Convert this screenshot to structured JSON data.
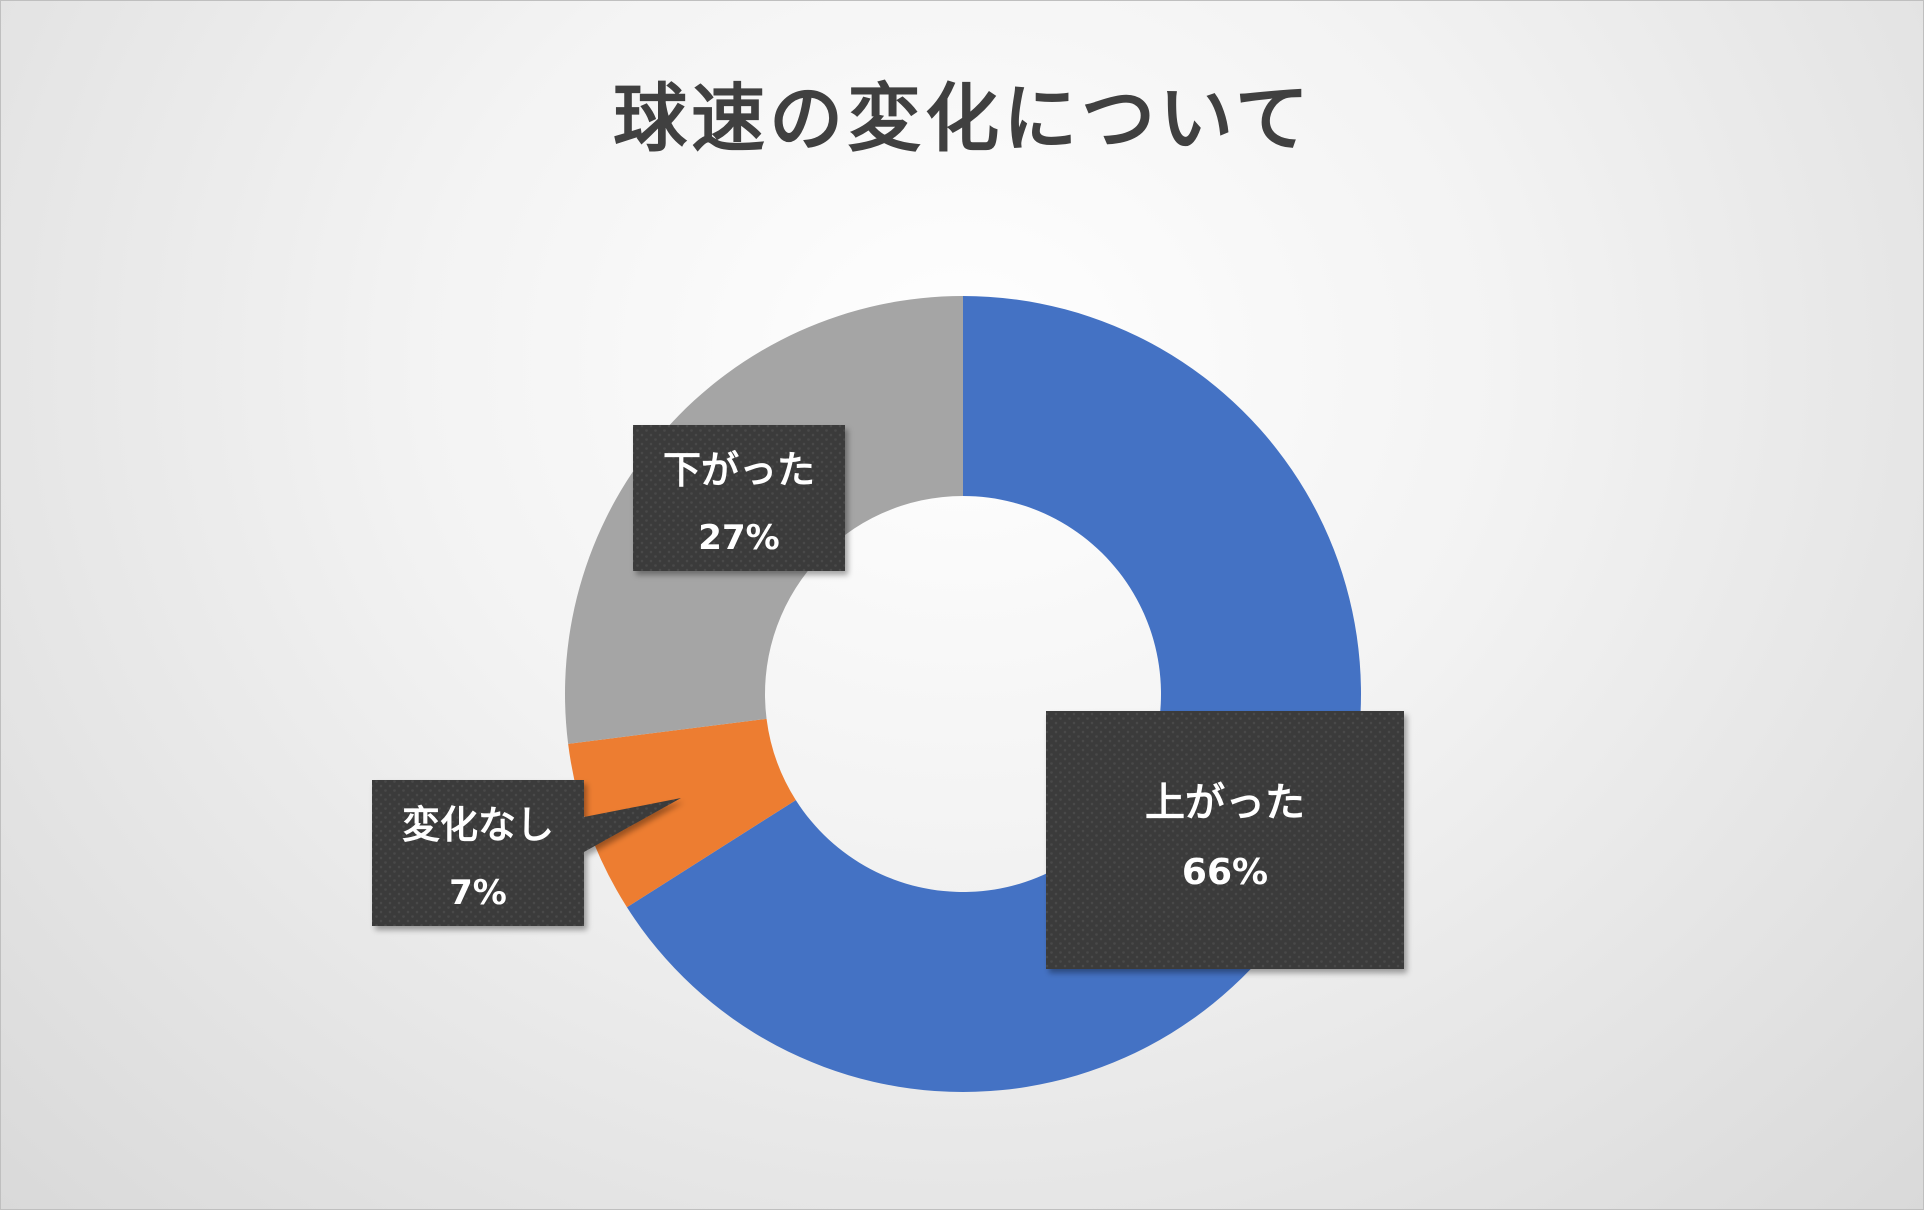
{
  "chart_data": {
    "type": "pie",
    "variant": "donut",
    "title": "球速の変化について",
    "start_angle_deg": 0,
    "slices": [
      {
        "label": "上がった",
        "value": 66,
        "value_label": "66%",
        "color": "#4472C4"
      },
      {
        "label": "変化なし",
        "value": 7,
        "value_label": "7%",
        "color": "#ED7D31"
      },
      {
        "label": "下がった",
        "value": 27,
        "value_label": "27%",
        "color": "#A5A5A5"
      }
    ],
    "data_labels": "callouts",
    "legend": "none"
  }
}
